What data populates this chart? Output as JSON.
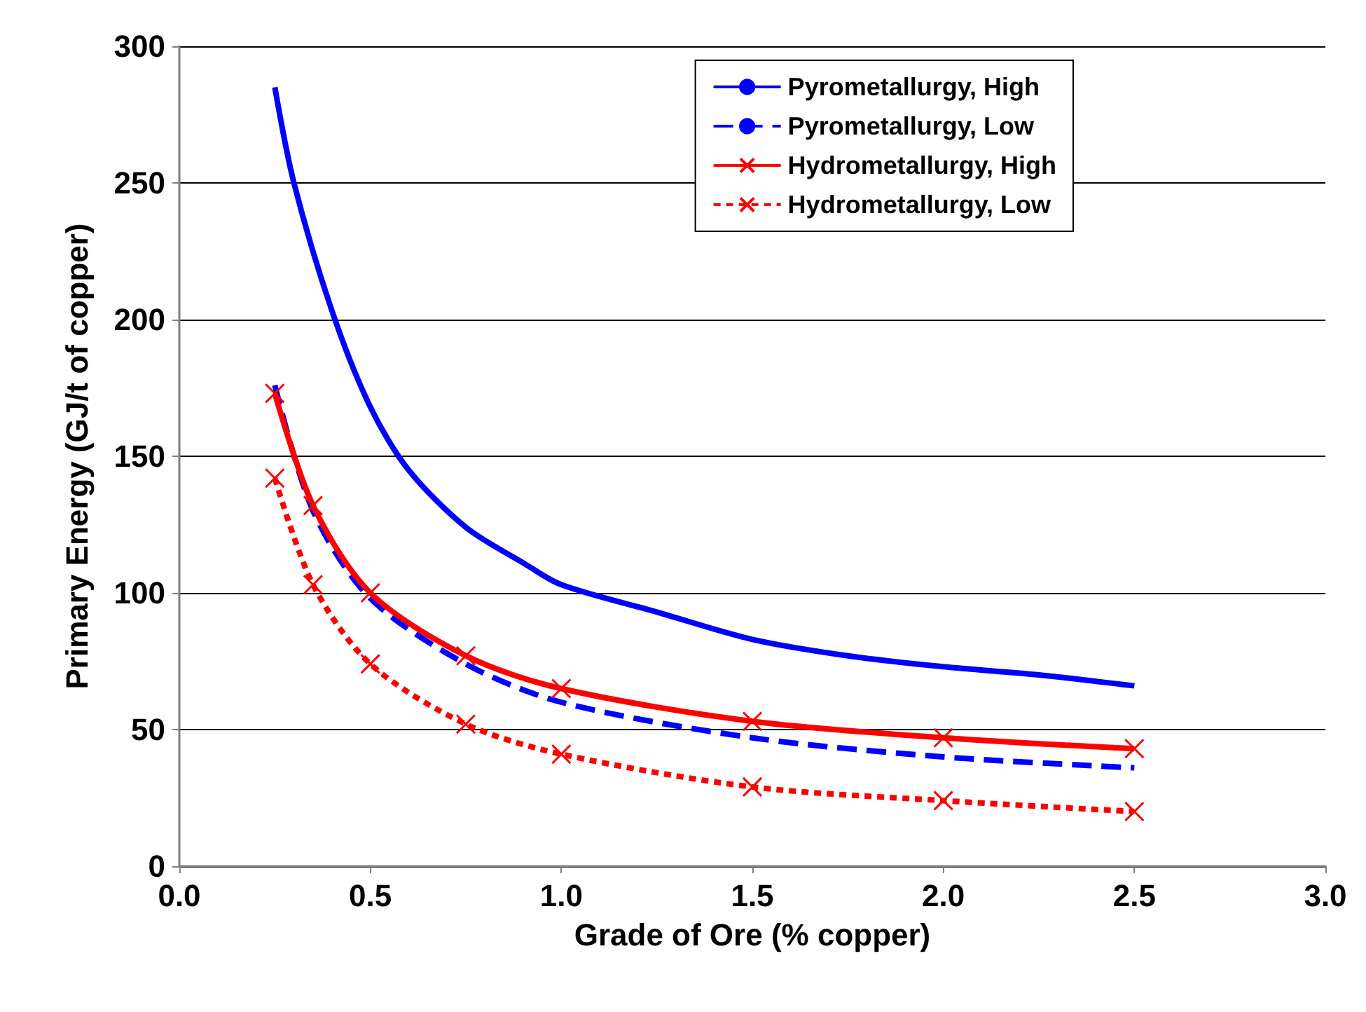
{
  "chart_data": {
    "type": "line",
    "xlabel": "Grade of Ore (% copper)",
    "ylabel": "Primary Energy (GJ/t of copper)",
    "xlim": [
      0,
      3
    ],
    "xticks": [
      {
        "value": 0,
        "label": "0.0"
      },
      {
        "value": 0.5,
        "label": "0.5"
      },
      {
        "value": 1,
        "label": "1.0"
      },
      {
        "value": 1.5,
        "label": "1.5"
      },
      {
        "value": 2,
        "label": "2.0"
      },
      {
        "value": 2.5,
        "label": "2.5"
      },
      {
        "value": 3,
        "label": "3.0"
      }
    ],
    "ylim": [
      0,
      300
    ],
    "yticks": [
      0,
      50,
      100,
      150,
      200,
      250,
      300
    ],
    "grid": "y",
    "legend": "top right",
    "series": [
      {
        "name": "Pyrometallurgy, High",
        "color": "#0000ff",
        "marker": "none",
        "line_style": "solid",
        "x": [
          0.25,
          0.3,
          0.4,
          0.5,
          0.6,
          0.75,
          0.9,
          1.0,
          1.25,
          1.5,
          1.75,
          2.0,
          2.25,
          2.5
        ],
        "values": [
          285,
          250,
          203,
          168,
          145,
          124,
          111,
          103,
          93,
          83,
          77,
          73,
          70,
          66
        ]
      },
      {
        "name": "Pyrometallurgy, Low",
        "color": "#0000ff",
        "marker": "none",
        "line_style": "dashed",
        "x": [
          0.25,
          0.35,
          0.5,
          0.75,
          1.0,
          1.5,
          2.0,
          2.5
        ],
        "values": [
          176,
          130,
          98,
          74,
          60,
          47,
          40,
          36
        ]
      },
      {
        "name": "Hydrometallurgy, High",
        "color": "#ff0000",
        "marker": "cross",
        "line_style": "solid",
        "x": [
          0.25,
          0.35,
          0.5,
          0.75,
          1.0,
          1.5,
          2.0,
          2.5
        ],
        "values": [
          173,
          132,
          100,
          77,
          65,
          53,
          47,
          43
        ]
      },
      {
        "name": "Hydrometallurgy, Low",
        "color": "#ff0000",
        "marker": "cross",
        "line_style": "dotted",
        "x": [
          0.25,
          0.35,
          0.5,
          0.75,
          1.0,
          1.5,
          2.0,
          2.5
        ],
        "values": [
          142,
          103,
          74,
          52,
          41,
          29,
          24,
          20
        ]
      }
    ]
  }
}
